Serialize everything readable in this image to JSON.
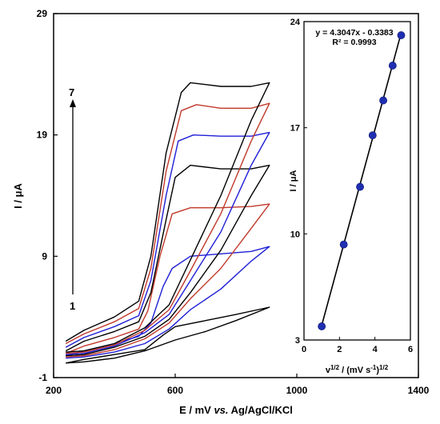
{
  "chart_data": [
    {
      "type": "line",
      "xlabel_pre": "E / mV ",
      "xlabel_italic": "vs.",
      "xlabel_post": " Ag/AgCl/KCl",
      "ylabel": "I / μA",
      "xlim": [
        200,
        1400
      ],
      "ylim": [
        -1,
        29
      ],
      "xticks": [
        "200",
        "600",
        "1000",
        "1400"
      ],
      "yticks": [
        "-1",
        "9",
        "19",
        "29"
      ],
      "arrow_start_label": "1",
      "arrow_end_label": "7",
      "x_range_data": [
        240,
        910
      ],
      "series": [
        {
          "color": "#000000",
          "anodic": [
            [
              240,
              0.2
            ],
            [
              300,
              0.5
            ],
            [
              400,
              0.9
            ],
            [
              500,
              1.3
            ],
            [
              560,
              2.5
            ],
            [
              600,
              3.2
            ],
            [
              700,
              3.7
            ],
            [
              800,
              4.2
            ],
            [
              910,
              4.8
            ]
          ],
          "cathodic": [
            [
              910,
              4.8
            ],
            [
              800,
              3.7
            ],
            [
              700,
              2.8
            ],
            [
              600,
              2.1
            ],
            [
              500,
              1.2
            ],
            [
              400,
              0.6
            ],
            [
              300,
              0.3
            ],
            [
              240,
              0.2
            ]
          ]
        },
        {
          "color": "#1f1fd6",
          "anodic": [
            [
              240,
              0.8
            ],
            [
              300,
              1.2
            ],
            [
              400,
              1.8
            ],
            [
              480,
              2.4
            ],
            [
              520,
              3.5
            ],
            [
              560,
              6.5
            ],
            [
              590,
              8.0
            ],
            [
              650,
              9.0
            ],
            [
              750,
              9.2
            ],
            [
              850,
              9.4
            ],
            [
              910,
              9.8
            ]
          ],
          "cathodic": [
            [
              910,
              9.8
            ],
            [
              850,
              8.6
            ],
            [
              750,
              6.3
            ],
            [
              650,
              4.6
            ],
            [
              580,
              3.0
            ],
            [
              500,
              1.8
            ],
            [
              400,
              1.1
            ],
            [
              300,
              0.7
            ],
            [
              240,
              0.6
            ]
          ]
        },
        {
          "color": "#c0392b",
          "anodic": [
            [
              240,
              1.0
            ],
            [
              300,
              1.6
            ],
            [
              400,
              2.3
            ],
            [
              480,
              3.0
            ],
            [
              510,
              4.5
            ],
            [
              550,
              9.0
            ],
            [
              590,
              12.5
            ],
            [
              650,
              13.0
            ],
            [
              750,
              13.0
            ],
            [
              850,
              13.1
            ],
            [
              910,
              13.3
            ]
          ],
          "cathodic": [
            [
              910,
              13.3
            ],
            [
              850,
              11.3
            ],
            [
              750,
              8.0
            ],
            [
              650,
              5.5
            ],
            [
              580,
              3.5
            ],
            [
              500,
              2.2
            ],
            [
              400,
              1.3
            ],
            [
              300,
              0.8
            ],
            [
              240,
              0.7
            ]
          ]
        },
        {
          "color": "#000000",
          "anodic": [
            [
              240,
              1.2
            ],
            [
              300,
              2.0
            ],
            [
              400,
              2.8
            ],
            [
              480,
              3.6
            ],
            [
              520,
              6.0
            ],
            [
              570,
              12.0
            ],
            [
              600,
              15.5
            ],
            [
              650,
              16.5
            ],
            [
              750,
              16.2
            ],
            [
              850,
              16.2
            ],
            [
              910,
              16.5
            ]
          ],
          "cathodic": [
            [
              910,
              16.5
            ],
            [
              850,
              14.0
            ],
            [
              750,
              9.5
            ],
            [
              650,
              6.0
            ],
            [
              580,
              3.8
            ],
            [
              500,
              2.4
            ],
            [
              400,
              1.5
            ],
            [
              300,
              0.9
            ],
            [
              240,
              0.8
            ]
          ]
        },
        {
          "color": "#1f1fd6",
          "anodic": [
            [
              240,
              1.5
            ],
            [
              300,
              2.3
            ],
            [
              400,
              3.2
            ],
            [
              480,
              4.1
            ],
            [
              520,
              7.0
            ],
            [
              570,
              14.0
            ],
            [
              610,
              18.5
            ],
            [
              660,
              19.0
            ],
            [
              750,
              18.9
            ],
            [
              850,
              18.9
            ],
            [
              910,
              19.2
            ]
          ],
          "cathodic": [
            [
              910,
              19.2
            ],
            [
              850,
              16.5
            ],
            [
              750,
              11.0
            ],
            [
              650,
              7.0
            ],
            [
              580,
              4.2
            ],
            [
              500,
              2.7
            ],
            [
              400,
              1.6
            ],
            [
              300,
              1.0
            ],
            [
              240,
              0.9
            ]
          ]
        },
        {
          "color": "#c0392b",
          "anodic": [
            [
              240,
              1.8
            ],
            [
              300,
              2.6
            ],
            [
              400,
              3.6
            ],
            [
              480,
              4.7
            ],
            [
              520,
              8.0
            ],
            [
              570,
              16.0
            ],
            [
              620,
              21.0
            ],
            [
              670,
              21.5
            ],
            [
              750,
              21.2
            ],
            [
              850,
              21.2
            ],
            [
              910,
              21.6
            ]
          ],
          "cathodic": [
            [
              910,
              21.6
            ],
            [
              850,
              18.5
            ],
            [
              750,
              12.5
            ],
            [
              650,
              7.8
            ],
            [
              580,
              4.6
            ],
            [
              500,
              2.9
            ],
            [
              400,
              1.7
            ],
            [
              300,
              1.1
            ],
            [
              240,
              1.0
            ]
          ]
        },
        {
          "color": "#000000",
          "anodic": [
            [
              240,
              2.0
            ],
            [
              300,
              2.9
            ],
            [
              400,
              4.0
            ],
            [
              480,
              5.3
            ],
            [
              520,
              9.0
            ],
            [
              570,
              17.5
            ],
            [
              620,
              22.5
            ],
            [
              650,
              23.3
            ],
            [
              750,
              23.0
            ],
            [
              850,
              23.0
            ],
            [
              910,
              23.3
            ]
          ],
          "cathodic": [
            [
              910,
              23.3
            ],
            [
              850,
              20.2
            ],
            [
              750,
              14.0
            ],
            [
              650,
              8.7
            ],
            [
              580,
              5.0
            ],
            [
              500,
              3.1
            ],
            [
              400,
              1.8
            ],
            [
              300,
              1.2
            ],
            [
              240,
              1.1
            ]
          ]
        }
      ]
    },
    {
      "type": "scatter",
      "xlabel_base": "v",
      "xlabel_sup1": "1/2",
      "xlabel_mid": " / (mV s",
      "xlabel_sup2": "-1",
      "xlabel_end": ")",
      "xlabel_sup3": "1/2",
      "ylabel": "I / μA",
      "xlim": [
        0,
        6
      ],
      "ylim": [
        3,
        24
      ],
      "xticks": [
        "0",
        "2",
        "4",
        "6"
      ],
      "yticks": [
        "3",
        "10",
        "17",
        "24"
      ],
      "x": [
        1.0,
        2.24,
        3.16,
        3.87,
        4.47,
        5.0,
        5.48
      ],
      "y": [
        3.9,
        9.3,
        13.1,
        16.5,
        18.8,
        21.1,
        23.1
      ],
      "fit_line": [
        [
          1.0,
          3.97
        ],
        [
          5.48,
          23.25
        ]
      ],
      "equation": "y = 4.3047x - 0.3383",
      "r2": "R² = 0.9993",
      "point_color": "#1f2fb0"
    }
  ]
}
